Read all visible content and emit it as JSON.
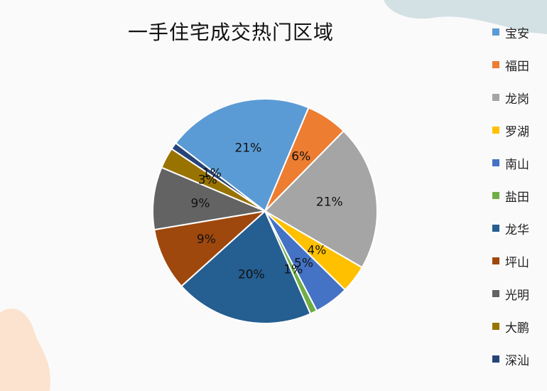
{
  "colors": {
    "background": "#fafafa",
    "deco_top": "#d3e0e4",
    "deco_bottom": "#fbe3cf"
  },
  "chart_data": {
    "type": "pie",
    "title": "一手住宅成交热门区域",
    "legend_position": "right",
    "slices": [
      {
        "name": "宝安",
        "value": 21,
        "label": "21%",
        "color": "#5b9bd5"
      },
      {
        "name": "福田",
        "value": 6,
        "label": "6%",
        "color": "#ed7d31"
      },
      {
        "name": "龙岗",
        "value": 21,
        "label": "21%",
        "color": "#a5a5a5"
      },
      {
        "name": "罗湖",
        "value": 4,
        "label": "4%",
        "color": "#ffc000"
      },
      {
        "name": "南山",
        "value": 5,
        "label": "5%",
        "color": "#4472c4"
      },
      {
        "name": "盐田",
        "value": 1,
        "label": "1%",
        "color": "#70ad47"
      },
      {
        "name": "龙华",
        "value": 20,
        "label": "20%",
        "color": "#255e91"
      },
      {
        "name": "坪山",
        "value": 9,
        "label": "9%",
        "color": "#9e480e"
      },
      {
        "name": "光明",
        "value": 9,
        "label": "9%",
        "color": "#636363"
      },
      {
        "name": "大鹏",
        "value": 3,
        "label": "3%",
        "color": "#997300"
      },
      {
        "name": "深汕",
        "value": 1,
        "label": "1%",
        "color": "#264478"
      }
    ]
  }
}
